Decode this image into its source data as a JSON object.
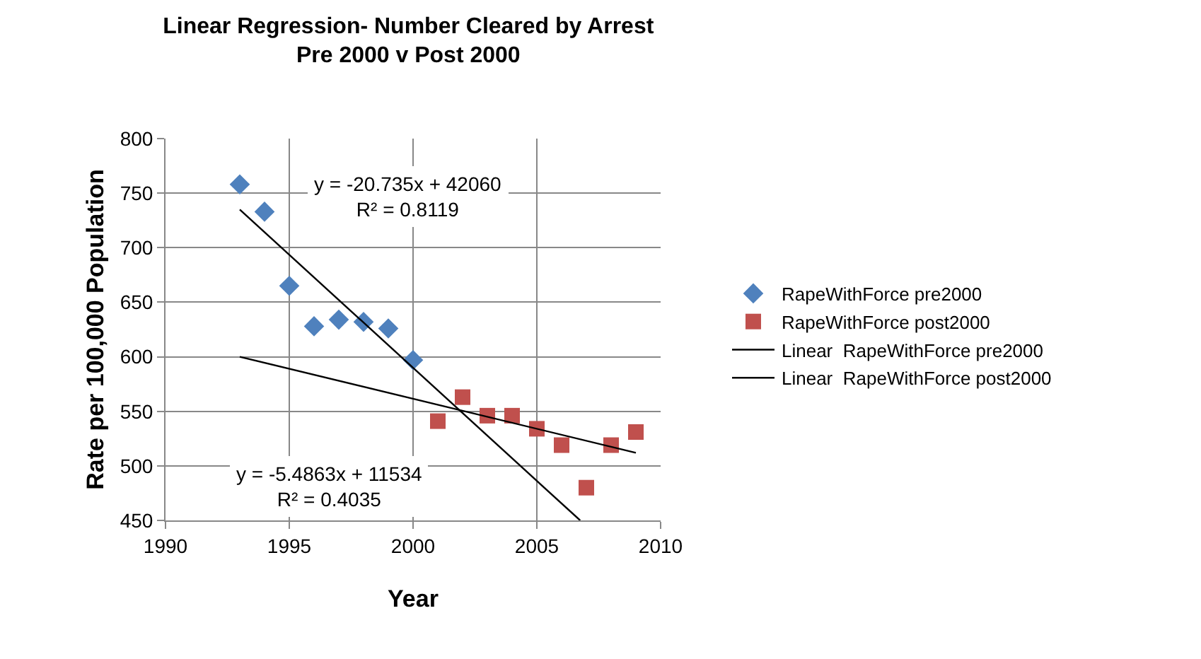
{
  "chart_data": {
    "type": "scatter",
    "title": "Linear Regression- Number Cleared by Arrest\nPre 2000 v Post 2000",
    "xlabel": "Year",
    "ylabel": "Rate per 100,000 Population",
    "xlim": [
      1990,
      2010
    ],
    "xticks": [
      1990,
      1995,
      2000,
      2005,
      2010
    ],
    "ylim": [
      450,
      800
    ],
    "yticks": [
      450,
      500,
      550,
      600,
      650,
      700,
      750,
      800
    ],
    "grid": true,
    "legend": "right",
    "series": [
      {
        "name": "RapeWithForce pre2000",
        "marker": "diamond",
        "color": "#4f81bd",
        "x": [
          1993,
          1994,
          1995,
          1996,
          1997,
          1998,
          1999,
          2000
        ],
        "values": [
          758,
          733,
          665,
          628,
          634,
          632,
          626,
          597
        ]
      },
      {
        "name": "RapeWithForce post2000",
        "marker": "square",
        "color": "#c0504d",
        "x": [
          2001,
          2002,
          2003,
          2004,
          2005,
          2006,
          2007,
          2008,
          2009
        ],
        "values": [
          541,
          563,
          546,
          546,
          534,
          519,
          480,
          519,
          531
        ]
      },
      {
        "name": "Linear  RapeWithForce pre2000",
        "type": "line",
        "marker": "none",
        "color": "#000000",
        "x": [
          1993,
          2006.75
        ],
        "values": [
          735,
          450
        ]
      },
      {
        "name": "Linear  RapeWithForce post2000",
        "type": "line",
        "marker": "none",
        "color": "#000000",
        "x": [
          1993,
          2009
        ],
        "values": [
          600,
          512
        ]
      }
    ],
    "annotations": [
      "y = -20.735x + 42060\nR² = 0.8119",
      "y = -5.4863x + 11534\nR² = 0.4035"
    ]
  }
}
